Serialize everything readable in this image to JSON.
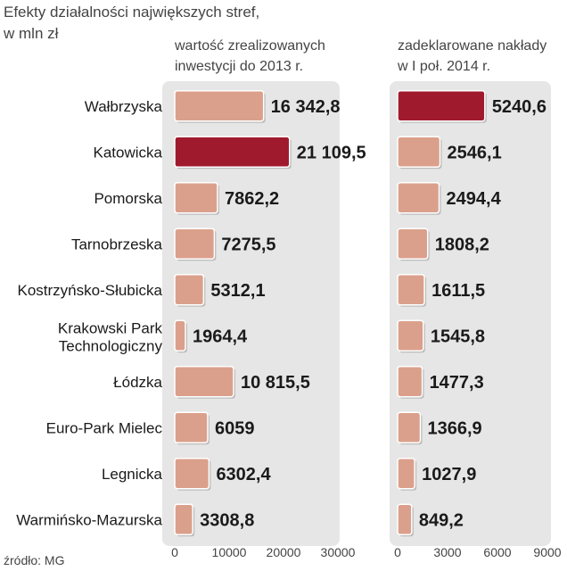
{
  "title_lines": [
    "Efekty działalności największych stref,",
    "w mln zł"
  ],
  "source": "źródło: MG",
  "colors": {
    "bar": "#dba08c",
    "bar_highlight": "#a01a2e",
    "panel_bg": "#e6e6e6"
  },
  "chart_data": [
    {
      "type": "bar",
      "orientation": "horizontal",
      "title_lines": [
        "wartość zrealizowanych",
        "inwestycji do 2013 r."
      ],
      "categories": [
        "Wałbrzyska",
        "Katowicka",
        "Pomorska",
        "Tarnobrzeska",
        "Kostrzyńsko-Słubicka",
        "Krakowski Park Technologiczny",
        "Łódzka",
        "Euro-Park Mielec",
        "Legnicka",
        "Warmińsko-Mazurska"
      ],
      "values": [
        16342.8,
        21109.5,
        7862.2,
        7275.5,
        5312.1,
        1964.4,
        10815.5,
        6059,
        6302.4,
        3308.8
      ],
      "value_labels": [
        "16 342,8",
        "21 109,5",
        "7862,2",
        "7275,5",
        "5312,1",
        "1964,4",
        "10 815,5",
        "6059",
        "6302,4",
        "3308,8"
      ],
      "highlight_index": 1,
      "xlim": [
        0,
        30000
      ],
      "ticks": [
        0,
        10000,
        20000,
        30000
      ],
      "tick_labels": [
        "0",
        "10000",
        "20000",
        "30000"
      ]
    },
    {
      "type": "bar",
      "orientation": "horizontal",
      "title_lines": [
        "zadeklarowane nakłady",
        "w I poł. 2014 r."
      ],
      "categories": [
        "Wałbrzyska",
        "Katowicka",
        "Pomorska",
        "Tarnobrzeska",
        "Kostrzyńsko-Słubicka",
        "Krakowski Park Technologiczny",
        "Łódzka",
        "Euro-Park Mielec",
        "Legnicka",
        "Warmińsko-Mazurska"
      ],
      "values": [
        5240.6,
        2546.1,
        2494.4,
        1808.2,
        1611.5,
        1545.8,
        1477.3,
        1366.9,
        1027.9,
        849.2
      ],
      "value_labels": [
        "5240,6",
        "2546,1",
        "2494,4",
        "1808,2",
        "1611,5",
        "1545,8",
        "1477,3",
        "1366,9",
        "1027,9",
        "849,2"
      ],
      "highlight_index": 0,
      "xlim": [
        0,
        9000
      ],
      "ticks": [
        0,
        3000,
        6000,
        9000
      ],
      "tick_labels": [
        "0",
        "3000",
        "6000",
        "9000"
      ]
    }
  ]
}
